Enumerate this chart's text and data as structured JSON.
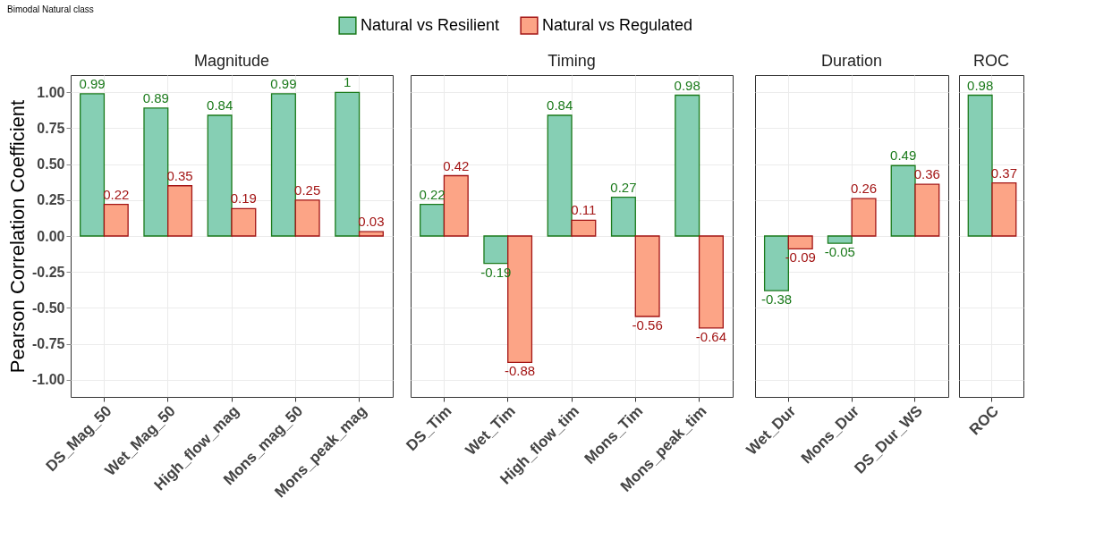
{
  "chart_data": [
    {
      "type": "bar",
      "title": "Magnitude",
      "annotations": [
        "Bimodal Natural class"
      ],
      "ylabel": "Pearson Correlation Coefficient",
      "categories": [
        "DS_Mag_50",
        "Wet_Mag_50",
        "High_flow_mag",
        "Mons_mag_50",
        "Mons_peak_mag"
      ],
      "series": [
        {
          "name": "Natural vs Resilient",
          "color": "#86cfb4",
          "values": [
            0.99,
            0.89,
            0.84,
            0.99,
            1
          ]
        },
        {
          "name": "Natural vs Regulated",
          "color": "#fca486",
          "values": [
            0.22,
            0.35,
            0.19,
            0.25,
            0.03
          ]
        }
      ],
      "ylim": [
        -1.12,
        1.12
      ],
      "yticks": [
        {
          "value": -1,
          "label": "-1.00"
        },
        {
          "value": -0.75,
          "label": "-0.75"
        },
        {
          "value": -0.5,
          "label": "-0.50"
        },
        {
          "value": -0.25,
          "label": "-0.25"
        },
        {
          "value": 0,
          "label": "0.00"
        },
        {
          "value": 0.25,
          "label": "0.25"
        },
        {
          "value": 0.5,
          "label": "0.50"
        },
        {
          "value": 0.75,
          "label": "0.75"
        },
        {
          "value": 1,
          "label": "1.00"
        }
      ],
      "grid": true,
      "data_labels": true,
      "legend": "top"
    },
    {
      "type": "bar",
      "title": "Timing",
      "categories": [
        "DS_Tim",
        "Wet_Tim",
        "High_flow_tim",
        "Mons_Tim",
        "Mons_peak_tim"
      ],
      "series": [
        {
          "name": "Natural vs Resilient",
          "color": "#86cfb4",
          "values": [
            0.22,
            -0.19,
            0.84,
            0.27,
            0.98
          ]
        },
        {
          "name": "Natural vs Regulated",
          "color": "#fca486",
          "values": [
            0.42,
            -0.88,
            0.11,
            -0.56,
            -0.64
          ]
        }
      ],
      "ylim": [
        -1.12,
        1.12
      ],
      "yticks": [
        -1,
        -0.75,
        -0.5,
        -0.25,
        0,
        0.25,
        0.5,
        0.75,
        1
      ],
      "grid": true,
      "data_labels": true,
      "tick_labels": "x"
    },
    {
      "type": "bar",
      "title": "Duration",
      "categories": [
        "Wet_Dur",
        "Mons_Dur",
        "DS_Dur_WS"
      ],
      "series": [
        {
          "name": "Natural vs Resilient",
          "color": "#86cfb4",
          "values": [
            -0.38,
            -0.05,
            0.49
          ]
        },
        {
          "name": "Natural vs Regulated",
          "color": "#fca486",
          "values": [
            -0.09,
            0.26,
            0.36
          ]
        }
      ],
      "ylim": [
        -1.12,
        1.12
      ],
      "yticks": [
        -1,
        -0.75,
        -0.5,
        -0.25,
        0,
        0.25,
        0.5,
        0.75,
        1
      ],
      "grid": true,
      "data_labels": true,
      "tick_labels": "x"
    },
    {
      "type": "bar",
      "title": "ROC",
      "categories": [
        "ROC"
      ],
      "series": [
        {
          "name": "Natural vs Resilient",
          "color": "#86cfb4",
          "values": [
            0.98
          ]
        },
        {
          "name": "Natural vs Regulated",
          "color": "#fca486",
          "values": [
            0.37
          ]
        }
      ],
      "ylim": [
        -1.12,
        1.12
      ],
      "yticks": [
        -1,
        -0.75,
        -0.5,
        -0.25,
        0,
        0.25,
        0.5,
        0.75,
        1
      ],
      "grid": true,
      "data_labels": true,
      "tick_labels": "x"
    }
  ]
}
